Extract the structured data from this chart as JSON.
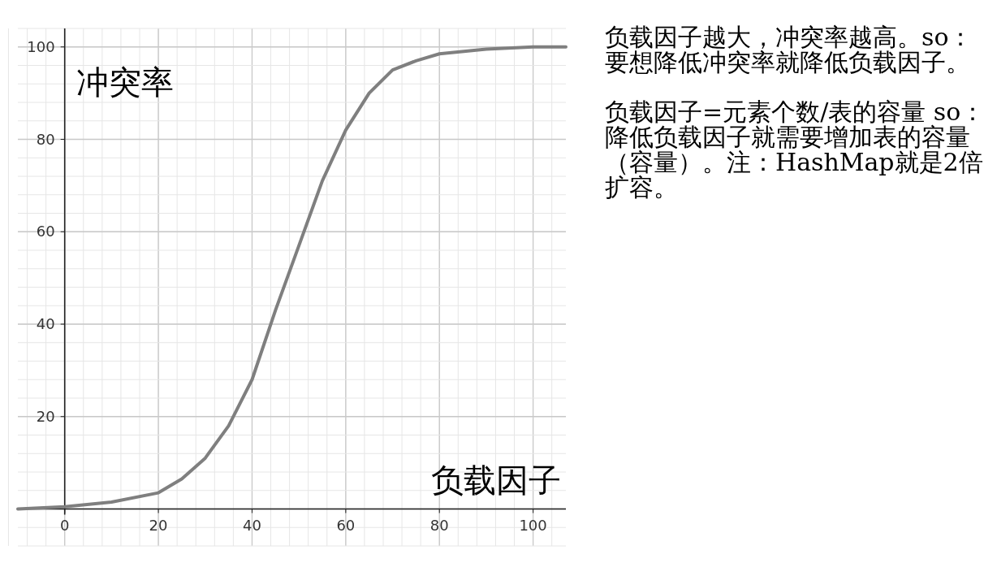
{
  "chart_data": {
    "type": "line",
    "xlabel": "负载因子",
    "ylabel": "冲突率",
    "x": [
      -10,
      0,
      10,
      20,
      25,
      30,
      35,
      40,
      45,
      50,
      55,
      60,
      65,
      70,
      75,
      80,
      90,
      100,
      107
    ],
    "series": [
      {
        "color": "#7f7f7f",
        "values": [
          0,
          0.5,
          1.5,
          3.5,
          6.5,
          11,
          18,
          28,
          43,
          57,
          71,
          82,
          90,
          95,
          97,
          98.5,
          99.5,
          100,
          100
        ]
      }
    ],
    "xlim": [
      -10,
      107
    ],
    "ylim": [
      -8,
      104
    ],
    "xticks": [
      0,
      20,
      40,
      60,
      80,
      100
    ],
    "yticks": [
      20,
      40,
      60,
      80,
      100
    ],
    "grid": true,
    "marker": "none",
    "line_style": "solid",
    "annotations": [
      "负载因子越大，冲突率越高。so：要想降低冲突率就降低负载因子。",
      "负载因子=元素个数/表的容量 so：降低负载因子就需要增加表的容量（容量）。注：HashMap就是2倍扩容。"
    ]
  }
}
